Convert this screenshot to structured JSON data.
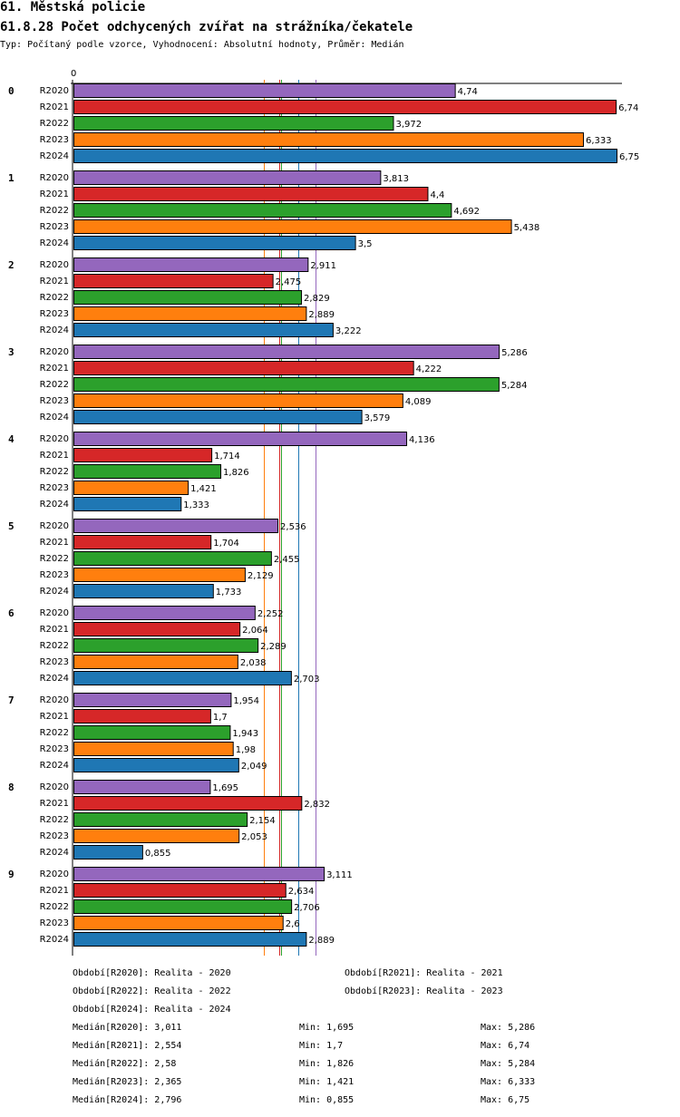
{
  "header": {
    "title": "61. Městská policie",
    "subtitle": "61.8.28 Počet odchycených zvířat na strážníka/čekatele",
    "info": "Typ: Počítaný podle vzorce, Vyhodnocení: Absolutní hodnoty, Průměr: Medián"
  },
  "chart_data": {
    "type": "bar",
    "orientation": "horizontal",
    "title": "61.8.28 Počet odchycených zvířat na strážníka/čekatele",
    "x_axis_zero_label": "0",
    "xlim": [
      0,
      6.75
    ],
    "categories": [
      "0",
      "1",
      "2",
      "3",
      "4",
      "5",
      "6",
      "7",
      "8",
      "9"
    ],
    "series": [
      {
        "name": "R2020",
        "color": "#9467bd",
        "values": [
          4.74,
          3.813,
          2.911,
          5.286,
          4.136,
          2.536,
          2.252,
          1.954,
          1.695,
          3.111
        ],
        "labels": [
          "4,74",
          "3,813",
          "2,911",
          "5,286",
          "4,136",
          "2,536",
          "2,252",
          "1,954",
          "1,695",
          "3,111"
        ]
      },
      {
        "name": "R2021",
        "color": "#d62728",
        "values": [
          6.74,
          4.4,
          2.475,
          4.222,
          1.714,
          1.704,
          2.064,
          1.7,
          2.832,
          2.634
        ],
        "labels": [
          "6,74",
          "4,4",
          "2,475",
          "4,222",
          "1,714",
          "1,704",
          "2,064",
          "1,7",
          "2,832",
          "2,634"
        ]
      },
      {
        "name": "R2022",
        "color": "#2ca02c",
        "values": [
          3.972,
          4.692,
          2.829,
          5.284,
          1.826,
          2.455,
          2.289,
          1.943,
          2.154,
          2.706
        ],
        "labels": [
          "3,972",
          "4,692",
          "2,829",
          "5,284",
          "1,826",
          "2,455",
          "2,289",
          "1,943",
          "2,154",
          "2,706"
        ]
      },
      {
        "name": "R2023",
        "color": "#ff7f0e",
        "values": [
          6.333,
          5.438,
          2.889,
          4.089,
          1.421,
          2.129,
          2.038,
          1.98,
          2.053,
          2.6
        ],
        "labels": [
          "6,333",
          "5,438",
          "2,889",
          "4,089",
          "1,421",
          "2,129",
          "2,038",
          "1,98",
          "2,053",
          "2,6"
        ]
      },
      {
        "name": "R2024",
        "color": "#1f77b4",
        "values": [
          6.75,
          3.5,
          3.222,
          3.579,
          1.333,
          1.733,
          2.703,
          2.049,
          0.855,
          2.889
        ],
        "labels": [
          "6,75",
          "3,5",
          "3,222",
          "3,579",
          "1,333",
          "1,733",
          "2,703",
          "2,049",
          "0,855",
          "2,889"
        ]
      }
    ],
    "median_lines": [
      {
        "series": "R2020",
        "value": 3.011,
        "color": "#9467bd"
      },
      {
        "series": "R2021",
        "value": 2.554,
        "color": "#d62728"
      },
      {
        "series": "R2022",
        "value": 2.58,
        "color": "#2ca02c"
      },
      {
        "series": "R2023",
        "value": 2.365,
        "color": "#ff7f0e"
      },
      {
        "series": "R2024",
        "value": 2.796,
        "color": "#1f77b4"
      }
    ]
  },
  "legend": {
    "periods": [
      "Období[R2020]: Realita - 2020",
      "Období[R2021]: Realita - 2021",
      "Období[R2022]: Realita - 2022",
      "Období[R2023]: Realita - 2023",
      "Období[R2024]: Realita - 2024"
    ],
    "stats": [
      {
        "median": "Medián[R2020]: 3,011",
        "min": "Min: 1,695",
        "max": "Max: 5,286"
      },
      {
        "median": "Medián[R2021]: 2,554",
        "min": "Min: 1,7",
        "max": "Max: 6,74"
      },
      {
        "median": "Medián[R2022]: 2,58",
        "min": "Min: 1,826",
        "max": "Max: 5,284"
      },
      {
        "median": "Medián[R2023]: 2,365",
        "min": "Min: 1,421",
        "max": "Max: 6,333"
      },
      {
        "median": "Medián[R2024]: 2,796",
        "min": "Min: 0,855",
        "max": "Max: 6,75"
      }
    ]
  }
}
